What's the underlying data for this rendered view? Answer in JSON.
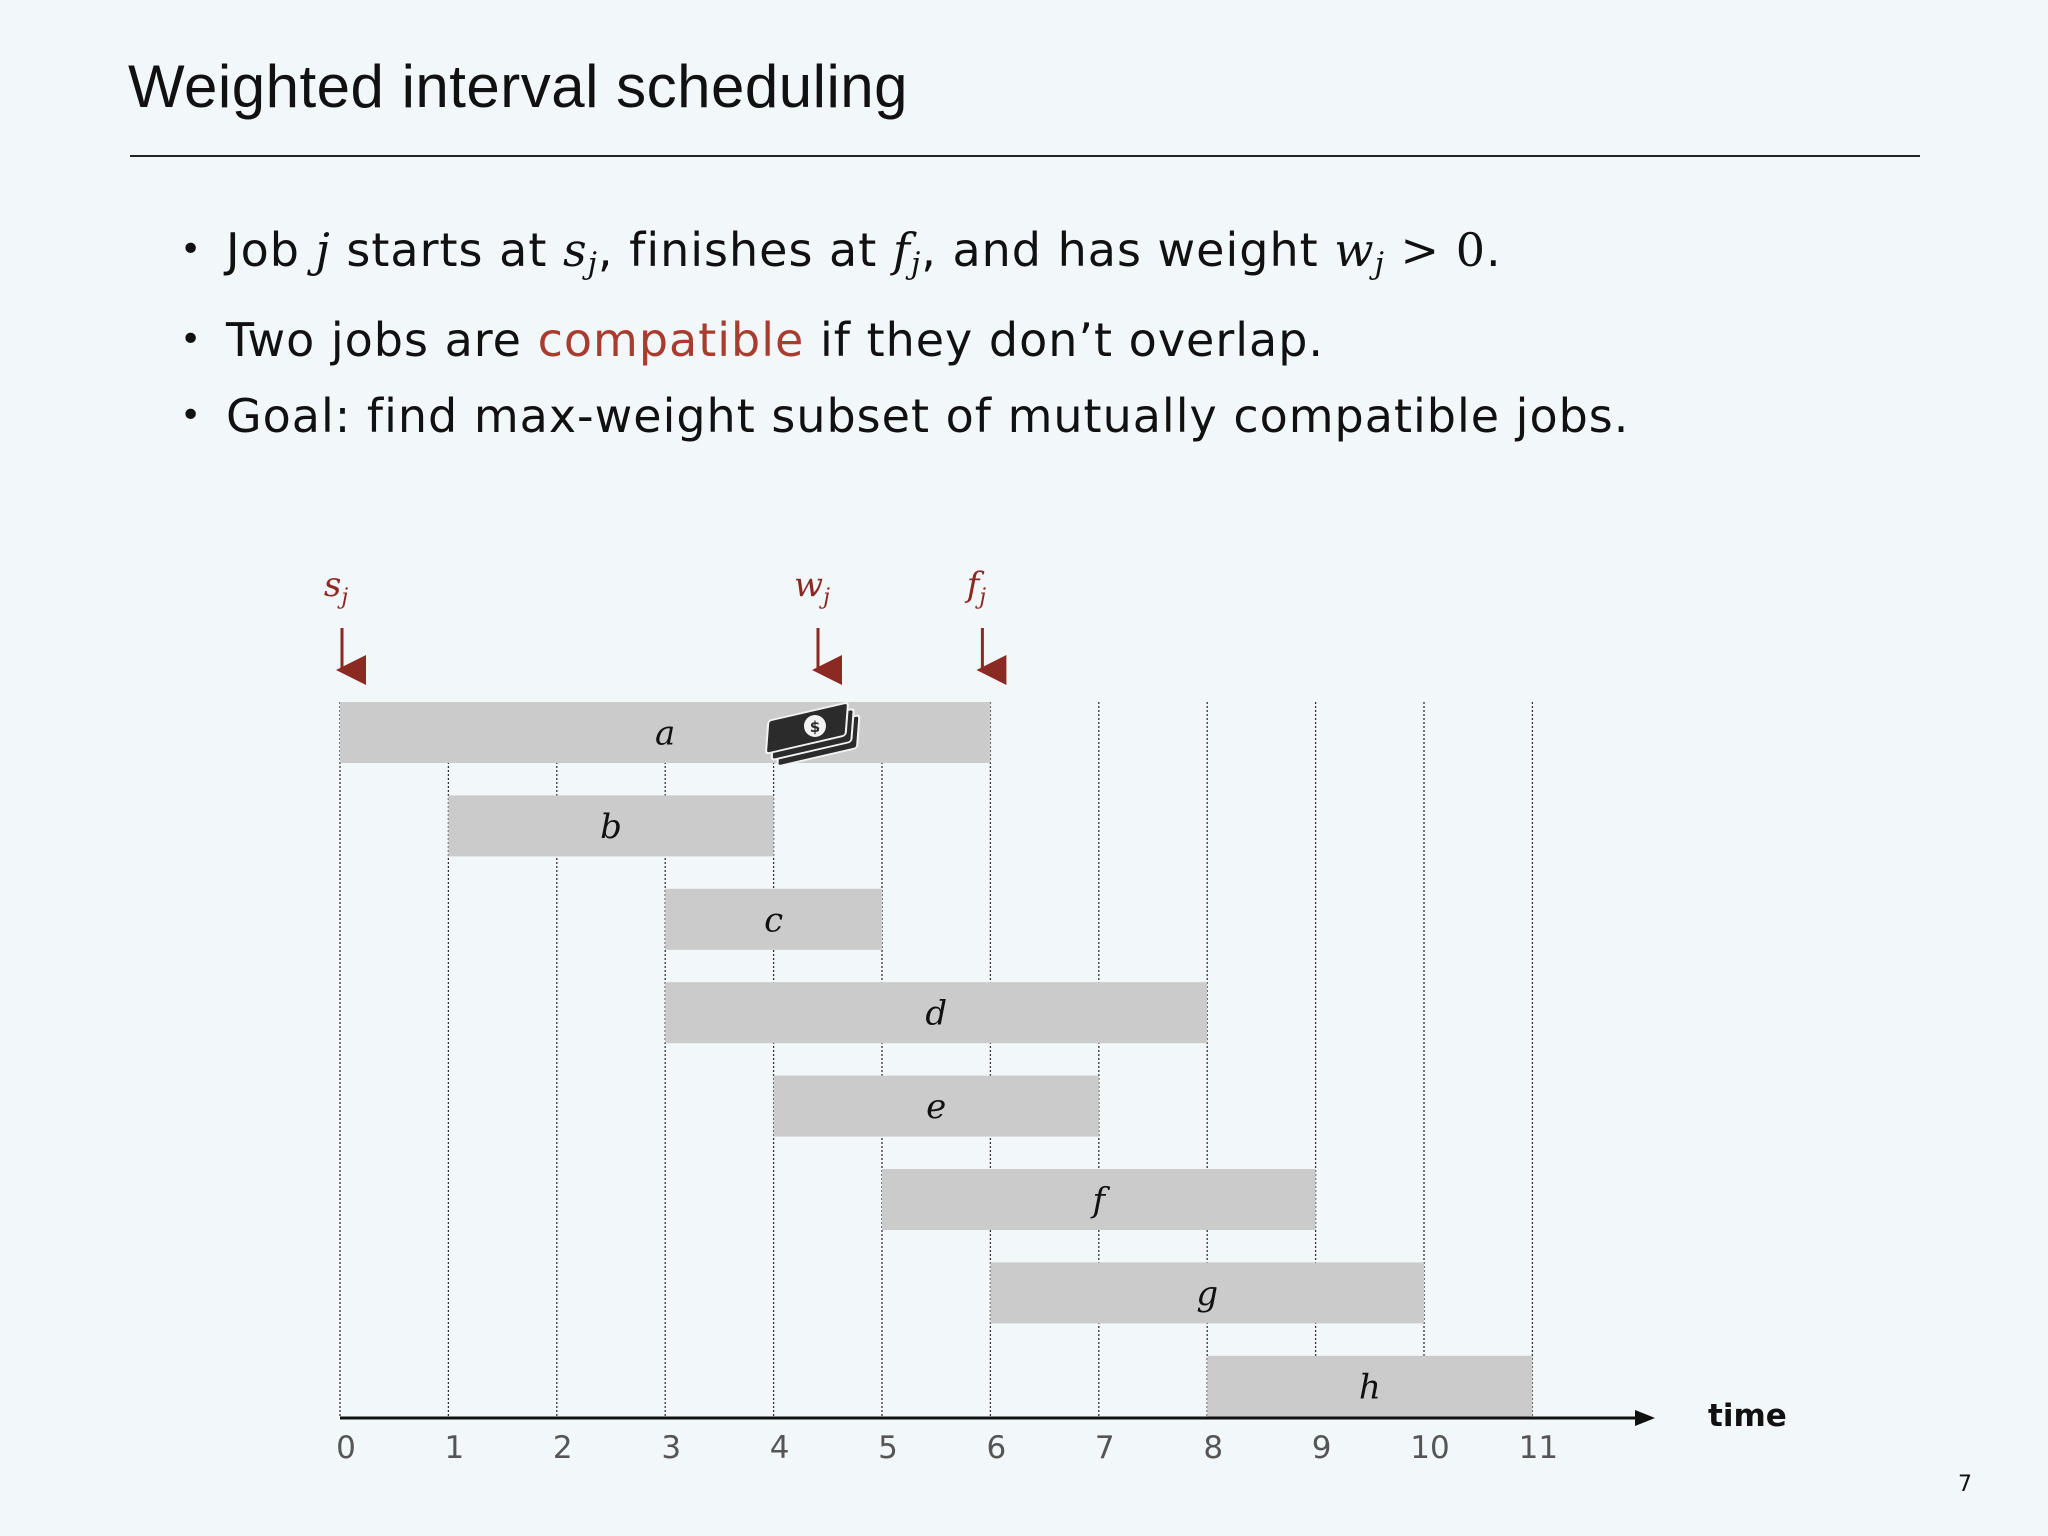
{
  "slide": {
    "title": "Weighted interval scheduling",
    "page_number": "7"
  },
  "bullets": [
    {
      "p1": "Job ",
      "j": "j",
      "p2": " starts at ",
      "s": "s",
      "s_sub": "j",
      "p3": ", finishes at ",
      "f": "f",
      "f_sub": "j",
      "p4": ", and has weight ",
      "w": "w",
      "w_sub": "j",
      "gt": " > 0",
      "p5": "."
    },
    {
      "p1": "Two jobs are ",
      "highlight": "compatible",
      "p2": " if they don’t overlap."
    },
    {
      "p1": "Goal:  find max-weight subset of mutually compatible jobs."
    }
  ],
  "colors": {
    "accent": "#a83c2e",
    "arrow": "#8b2a22",
    "bar": "#cbcbcb",
    "text": "#111111",
    "tick_label": "#555555"
  },
  "chart_data": {
    "type": "gantt",
    "x_ticks": [
      0,
      1,
      2,
      3,
      4,
      5,
      6,
      7,
      8,
      9,
      10,
      11
    ],
    "x_label": "time",
    "jobs": [
      {
        "label": "a",
        "start": 0,
        "finish": 6
      },
      {
        "label": "b",
        "start": 1,
        "finish": 4
      },
      {
        "label": "c",
        "start": 3,
        "finish": 5
      },
      {
        "label": "d",
        "start": 3,
        "finish": 8
      },
      {
        "label": "e",
        "start": 4,
        "finish": 7
      },
      {
        "label": "f",
        "start": 5,
        "finish": 9
      },
      {
        "label": "g",
        "start": 6,
        "finish": 10
      },
      {
        "label": "h",
        "start": 8,
        "finish": 11
      }
    ],
    "annotations": [
      {
        "base": "s",
        "sub": "j",
        "time": 0
      },
      {
        "base": "w",
        "sub": "j",
        "time": 4.4
      },
      {
        "base": "f",
        "sub": "j",
        "time": 6
      }
    ],
    "money_icon": "money-stack-icon"
  }
}
